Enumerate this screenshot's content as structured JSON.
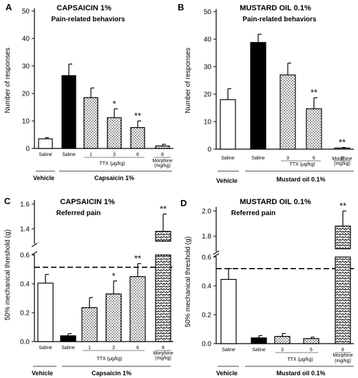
{
  "figure": {
    "panels": [
      {
        "letter": "A",
        "title": "CAPSAICIN 1%",
        "subtitle": "Pain-related behaviors",
        "ylabel": "Number of responses",
        "group_label": "Capsaicin 1%",
        "vehicle_label": "Vehicle",
        "ttx_label": "TTX (μg/kg)"
      },
      {
        "letter": "B",
        "title": "MUSTARD OIL 0.1%",
        "subtitle": "Pain-related behaviors",
        "ylabel": "Number of responses",
        "group_label": "Mustard oil 0.1%",
        "vehicle_label": "Vehicle",
        "ttx_label": "TTX (μg/kg)"
      },
      {
        "letter": "C",
        "title": "CAPSAICIN 1%",
        "subtitle": "Referred pain",
        "ylabel": "50% mechanical threshold (g)",
        "group_label": "Capsaicin 1%",
        "vehicle_label": "Vehicle",
        "ttx_label": "TTX (μg/kg)"
      },
      {
        "letter": "D",
        "title": "MUSTARD OIL 0.1%",
        "subtitle": "Referred pain",
        "ylabel": "50% mechanical threshold (g)",
        "group_label": "Mustard oil 0.1%",
        "vehicle_label": "Vehicle",
        "ttx_label": "TTX (μg/kg)"
      }
    ],
    "colors": {
      "ink": "#000000",
      "background": "#ffffff"
    }
  },
  "chart_data": [
    {
      "type": "bar",
      "panel": "A",
      "categories": [
        "Saline",
        "Saline",
        "1",
        "3",
        "6",
        "8"
      ],
      "category_groups": [
        "Vehicle",
        "Capsaicin 1%",
        "TTX (μg/kg)",
        "TTX (μg/kg)",
        "TTX (μg/kg)",
        "Morphine (mg/kg)"
      ],
      "values": [
        3.5,
        26.5,
        18.5,
        11.2,
        7.6,
        0.9
      ],
      "errors": [
        0.4,
        4.2,
        3.5,
        3.2,
        2.4,
        0.6
      ],
      "fills": [
        "white",
        "black",
        "dots",
        "dots",
        "dots",
        "dots"
      ],
      "significance": [
        "",
        "",
        "",
        "*",
        "**",
        ""
      ],
      "ylim": [
        0,
        50
      ],
      "yticks": [
        0,
        10,
        20,
        30,
        40,
        50
      ]
    },
    {
      "type": "bar",
      "panel": "B",
      "categories": [
        "Saline",
        "Saline",
        "3",
        "6",
        "8"
      ],
      "category_groups": [
        "Vehicle",
        "Mustard oil 0.1%",
        "TTX (μg/kg)",
        "TTX (μg/kg)",
        "Morphine (mg/kg)"
      ],
      "values": [
        18.0,
        38.8,
        27.0,
        14.7,
        0.4
      ],
      "errors": [
        4.0,
        3.0,
        4.3,
        4.0,
        0.2
      ],
      "fills": [
        "white",
        "black",
        "dots",
        "dots",
        "dots"
      ],
      "significance": [
        "",
        "",
        "",
        "**",
        "**"
      ],
      "ylim": [
        0,
        50
      ],
      "yticks": [
        0,
        10,
        20,
        30,
        40,
        50
      ]
    },
    {
      "type": "bar",
      "panel": "C",
      "categories": [
        "Saline",
        "Saline",
        "1",
        "3",
        "6",
        "8"
      ],
      "category_groups": [
        "Vehicle",
        "Capsaicin 1%",
        "TTX (μg/kg)",
        "TTX (μg/kg)",
        "TTX (μg/kg)",
        "Morphine (mg/kg)"
      ],
      "values": [
        0.405,
        0.04,
        0.235,
        0.33,
        0.45,
        1.38
      ],
      "errors": [
        0.06,
        0.015,
        0.07,
        0.09,
        0.09,
        0.14
      ],
      "fills": [
        "white",
        "black",
        "dots",
        "dots",
        "dots",
        "zigzag"
      ],
      "significance": [
        "",
        "",
        "",
        "*",
        "**",
        "**"
      ],
      "reference_line": 0.515,
      "broken_axis": true,
      "ylim_lower": [
        0,
        0.6
      ],
      "ylim_upper": [
        1.3,
        1.6
      ],
      "yticks": [
        0.0,
        0.2,
        0.4,
        0.6,
        1.4,
        1.6
      ]
    },
    {
      "type": "bar",
      "panel": "D",
      "categories": [
        "Saline",
        "Saline",
        "3",
        "6",
        "8"
      ],
      "category_groups": [
        "Vehicle",
        "Mustard oil 0.1%",
        "TTX (μg/kg)",
        "TTX (μg/kg)",
        "Morphine (mg/kg)"
      ],
      "values": [
        0.445,
        0.04,
        0.05,
        0.035,
        1.88
      ],
      "errors": [
        0.075,
        0.015,
        0.02,
        0.01,
        0.12
      ],
      "fills": [
        "white",
        "black",
        "dots",
        "dots",
        "zigzag"
      ],
      "significance": [
        "",
        "",
        "",
        "",
        "**"
      ],
      "reference_line": 0.52,
      "broken_axis": true,
      "ylim_lower": [
        0,
        0.6
      ],
      "ylim_upper": [
        1.7,
        2.0
      ],
      "yticks": [
        0.0,
        0.2,
        0.4,
        0.6,
        1.8,
        2.0
      ]
    }
  ]
}
